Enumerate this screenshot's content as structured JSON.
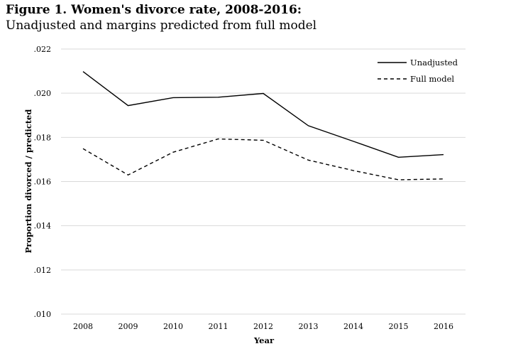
{
  "figure": {
    "title": "Figure 1. Women's divorce rate, 2008-2016:",
    "subtitle": "Unadjusted and margins predicted from full model"
  },
  "chart_data": {
    "type": "line",
    "x": [
      2008,
      2009,
      2010,
      2011,
      2012,
      2013,
      2014,
      2015,
      2016
    ],
    "x_tick_labels": [
      "2008",
      "2009",
      "2010",
      "2011",
      "2012",
      "2013",
      "2014",
      "2015",
      "2016"
    ],
    "xlabel": "Year",
    "ylabel": "Proportion divorced / predicted",
    "ylim": [
      0.01,
      0.022
    ],
    "y_ticks": [
      0.01,
      0.012,
      0.014,
      0.016,
      0.018,
      0.02,
      0.022
    ],
    "y_tick_labels": [
      ".010",
      ".012",
      ".014",
      ".016",
      ".018",
      ".020",
      ".022"
    ],
    "grid": "horizontal",
    "legend_position": "top-right",
    "series": [
      {
        "name": "Unadjusted",
        "style": "solid",
        "color": "#000000",
        "values": [
          0.02098,
          0.01944,
          0.0198,
          0.01982,
          0.01999,
          0.01853,
          0.01782,
          0.0171,
          0.01722
        ]
      },
      {
        "name": "Full model",
        "style": "dashed",
        "color": "#000000",
        "values": [
          0.01749,
          0.0163,
          0.01733,
          0.01793,
          0.01787,
          0.01697,
          0.0165,
          0.01608,
          0.01612
        ]
      }
    ]
  }
}
